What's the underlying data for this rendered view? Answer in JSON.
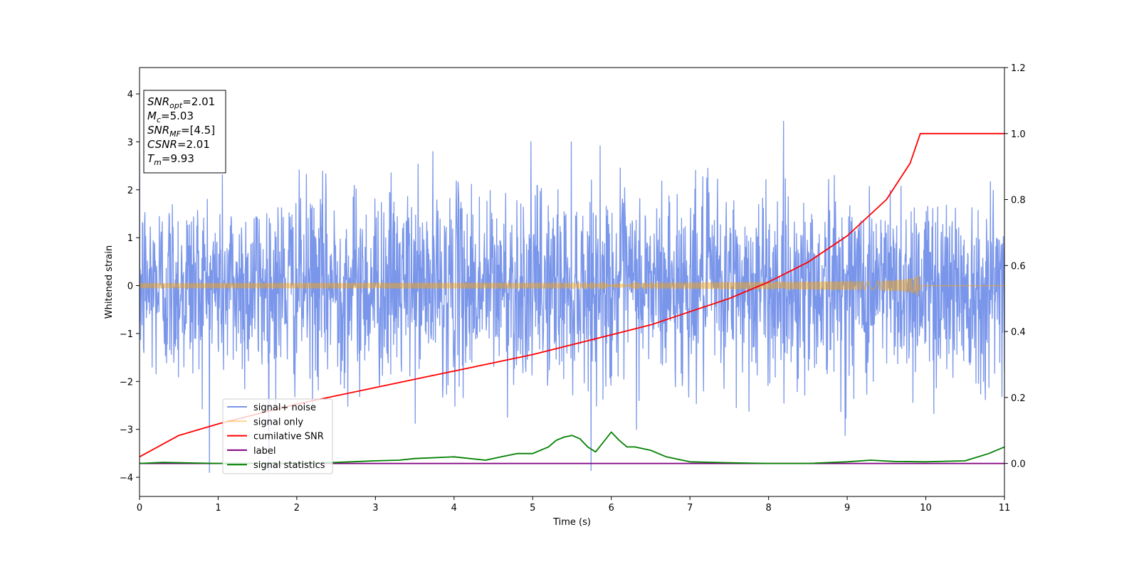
{
  "chart_data": {
    "type": "line",
    "xlabel": "Time (s)",
    "ylabel": "Whitened strain",
    "xlim": [
      0,
      11
    ],
    "ylim_left": [
      -4.4,
      4.55
    ],
    "ylim_right": [
      -0.1,
      1.2
    ],
    "x_ticks": [
      0,
      1,
      2,
      3,
      4,
      5,
      6,
      7,
      8,
      9,
      10,
      11
    ],
    "y_left_ticks": [
      -4,
      -3,
      -2,
      -1,
      0,
      1,
      2,
      3,
      4
    ],
    "y_right_ticks": [
      0.0,
      0.2,
      0.4,
      0.6,
      0.8,
      1.0,
      1.2
    ],
    "grid": false,
    "legend_position": "lower-left",
    "annotation_box": {
      "position": "top-left",
      "lines": [
        {
          "sym": "SNR",
          "sub": "opt",
          "val": "=2.01"
        },
        {
          "sym": "M",
          "sub": "c",
          "val": "=5.03"
        },
        {
          "sym": "SNR",
          "sub": "MF",
          "val": "=[4.5]"
        },
        {
          "sym": "CSNR",
          "sub": "",
          "val": "=2.01"
        },
        {
          "sym": "T",
          "sub": "m",
          "val": "=9.93"
        }
      ]
    },
    "series": [
      {
        "name": "signal+ noise",
        "axis": "left",
        "color": "#4169e1",
        "opacity": 0.7,
        "kind": "noise",
        "std": 1.0,
        "x_range": [
          0,
          11
        ]
      },
      {
        "name": "signal only",
        "axis": "left",
        "color": "#ffa500",
        "opacity": 0.45,
        "kind": "chirp",
        "merger_time": 9.93,
        "peak_amplitude": 0.22
      },
      {
        "name": "cumilative SNR",
        "axis": "right",
        "color": "#ff0000",
        "x": [
          0,
          0.5,
          1,
          1.5,
          2,
          2.5,
          3,
          3.5,
          4,
          4.5,
          5,
          5.5,
          6,
          6.5,
          7,
          7.5,
          8,
          8.5,
          9,
          9.5,
          9.8,
          9.93,
          11
        ],
        "y": [
          0.02,
          0.085,
          0.12,
          0.15,
          0.18,
          0.205,
          0.23,
          0.255,
          0.28,
          0.305,
          0.33,
          0.36,
          0.39,
          0.42,
          0.46,
          0.5,
          0.55,
          0.61,
          0.69,
          0.8,
          0.91,
          1.0,
          1.0
        ]
      },
      {
        "name": "label",
        "axis": "right",
        "color": "#800080",
        "x": [
          0,
          11
        ],
        "y": [
          0,
          0
        ]
      },
      {
        "name": "signal statistics",
        "axis": "right",
        "color": "#008000",
        "x": [
          0,
          0.3,
          1,
          2,
          2.5,
          3,
          3.3,
          3.5,
          4,
          4.4,
          4.6,
          4.8,
          5,
          5.2,
          5.3,
          5.4,
          5.5,
          5.6,
          5.7,
          5.8,
          5.9,
          6.0,
          6.1,
          6.2,
          6.3,
          6.4,
          6.5,
          6.7,
          7,
          7.5,
          8,
          8.5,
          9,
          9.3,
          9.6,
          10,
          10.5,
          10.8,
          11
        ],
        "y": [
          0.0,
          0.003,
          0.0,
          0.0,
          0.003,
          0.008,
          0.01,
          0.015,
          0.02,
          0.01,
          0.02,
          0.03,
          0.03,
          0.05,
          0.07,
          0.08,
          0.085,
          0.075,
          0.05,
          0.035,
          0.065,
          0.095,
          0.07,
          0.05,
          0.05,
          0.045,
          0.04,
          0.02,
          0.005,
          0.002,
          0.0,
          0.0,
          0.005,
          0.01,
          0.006,
          0.005,
          0.008,
          0.03,
          0.05
        ]
      }
    ]
  }
}
